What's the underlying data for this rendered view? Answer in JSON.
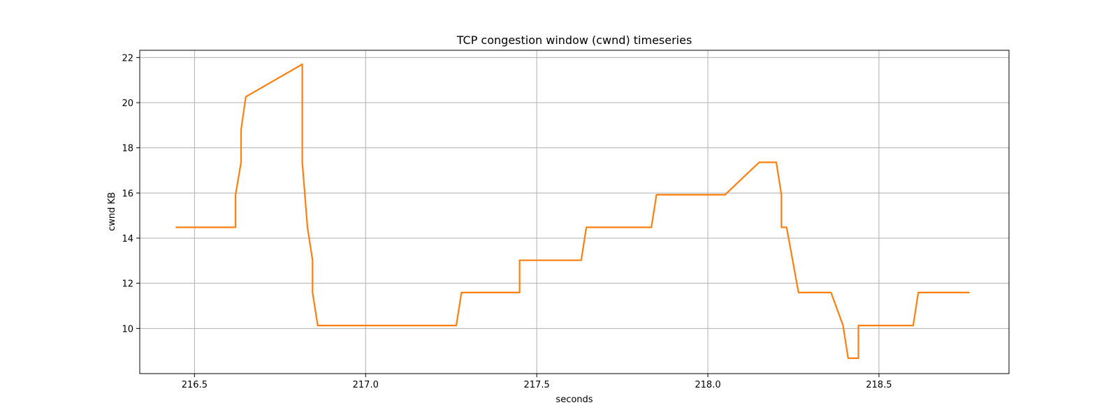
{
  "chart_data": {
    "type": "line",
    "title": "TCP congestion window (cwnd) timeseries",
    "xlabel": "seconds",
    "ylabel": "cwnd KB",
    "xlim": [
      216.34,
      218.88
    ],
    "ylim": [
      8.0,
      22.32
    ],
    "xticks": [
      216.5,
      217.0,
      217.5,
      218.0,
      218.5
    ],
    "xtick_labels": [
      "216.5",
      "217.0",
      "217.5",
      "218.0",
      "218.5"
    ],
    "yticks": [
      10,
      12,
      14,
      16,
      18,
      20,
      22
    ],
    "ytick_labels": [
      "10",
      "12",
      "14",
      "16",
      "18",
      "20",
      "22"
    ],
    "grid": true,
    "legend": "none",
    "series": [
      {
        "color": "#ff7f0e",
        "points": [
          [
            216.445,
            14.48
          ],
          [
            216.62,
            14.48
          ],
          [
            216.62,
            15.92
          ],
          [
            216.636,
            17.36
          ],
          [
            216.636,
            18.81
          ],
          [
            216.65,
            20.26
          ],
          [
            216.815,
            21.7
          ],
          [
            216.815,
            17.36
          ],
          [
            216.83,
            14.48
          ],
          [
            216.845,
            13.02
          ],
          [
            216.845,
            11.59
          ],
          [
            216.86,
            10.13
          ],
          [
            217.265,
            10.13
          ],
          [
            217.28,
            11.59
          ],
          [
            217.45,
            11.59
          ],
          [
            217.45,
            13.02
          ],
          [
            217.63,
            13.02
          ],
          [
            217.645,
            14.48
          ],
          [
            217.835,
            14.48
          ],
          [
            217.85,
            15.92
          ],
          [
            218.05,
            15.92
          ],
          [
            218.15,
            17.36
          ],
          [
            218.2,
            17.36
          ],
          [
            218.215,
            15.92
          ],
          [
            218.215,
            14.48
          ],
          [
            218.23,
            14.48
          ],
          [
            218.265,
            11.59
          ],
          [
            218.36,
            11.59
          ],
          [
            218.395,
            10.13
          ],
          [
            218.41,
            8.68
          ],
          [
            218.44,
            8.68
          ],
          [
            218.44,
            10.13
          ],
          [
            218.6,
            10.13
          ],
          [
            218.615,
            11.59
          ],
          [
            218.765,
            11.59
          ]
        ]
      }
    ]
  }
}
